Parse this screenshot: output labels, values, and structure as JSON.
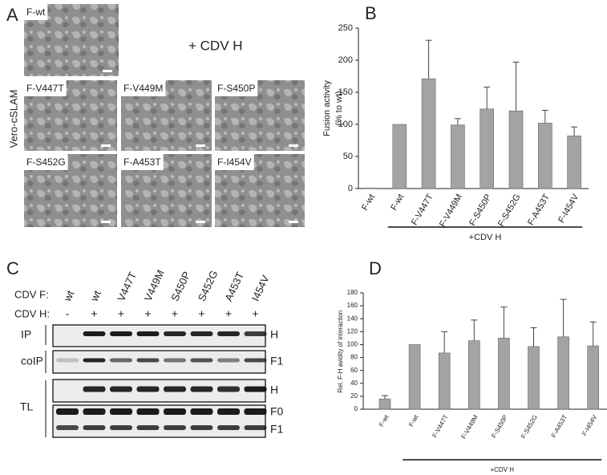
{
  "panels": {
    "A": {
      "letter": "A",
      "annotation": "+ CDV H",
      "side_label": "Vero-cSLAM",
      "images": [
        "F-wt",
        "F-V447T",
        "F-V449M",
        "F-S450P",
        "F-S452G",
        "F-A453T",
        "F-I454V"
      ]
    },
    "C": {
      "letter": "C",
      "row_f": "CDV F:",
      "row_h": "CDV H:",
      "lanes_f": [
        "wt",
        "wt",
        "V447T",
        "V449M",
        "S450P",
        "S452G",
        "A453T",
        "I454V"
      ],
      "lanes_h": [
        "-",
        "+",
        "+",
        "+",
        "+",
        "+",
        "+",
        "+"
      ],
      "left_labels": [
        "IP",
        "coIP",
        "TL"
      ],
      "right_labels": [
        "H",
        "F1",
        "H",
        "F0",
        "F1"
      ]
    }
  },
  "chart_data": [
    {
      "type": "bar",
      "panel_label": "B",
      "ylabel": [
        "Fusion activity",
        "(% to wt)"
      ],
      "categories": [
        "F-wt",
        "F-wt",
        "F-V447T",
        "F-V449M",
        "F-S450P",
        "F-S452G",
        "F-A453T",
        "F-I454V"
      ],
      "values": [
        1,
        100,
        171,
        99,
        124,
        121,
        102,
        82
      ],
      "errors": [
        null,
        null,
        60,
        10,
        34,
        76,
        20,
        14
      ],
      "color": "#a3a3a3",
      "ylim": [
        0,
        250
      ],
      "yticks": [
        0,
        50,
        100,
        150,
        200,
        250
      ],
      "bracket_label": "+CDV H"
    },
    {
      "type": "bar",
      "panel_label": "D",
      "ylabel": [
        "Rel. F-H avidity of interaction"
      ],
      "categories": [
        "F-wt",
        "F-wt",
        "F-V447T",
        "F-V449M",
        "F-S450P",
        "F-S452G",
        "F-A453T",
        "F-I454V"
      ],
      "values": [
        16,
        100,
        87,
        106,
        110,
        97,
        112,
        98
      ],
      "errors": [
        5,
        null,
        33,
        32,
        48,
        29,
        58,
        37
      ],
      "color": "#a3a3a3",
      "ylim": [
        0,
        180
      ],
      "yticks": [
        0,
        20,
        40,
        60,
        80,
        100,
        120,
        140,
        160,
        180
      ],
      "bracket_label": "+CDV H"
    }
  ]
}
